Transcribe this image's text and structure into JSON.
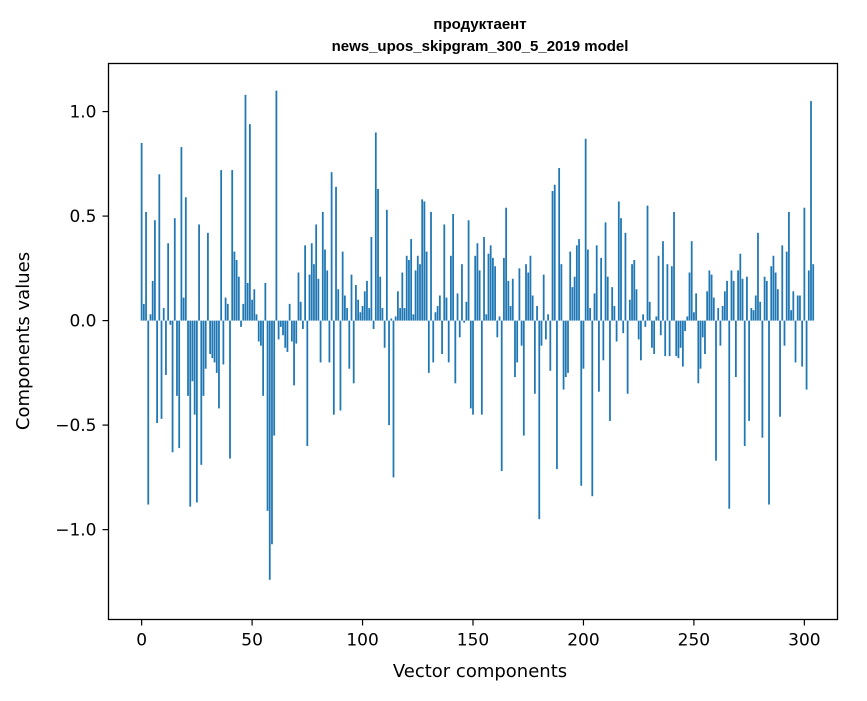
{
  "chart_data": {
    "type": "bar",
    "title": "продуктаент",
    "subtitle": "news_upos_skipgram_300_5_2019 model",
    "xlabel": "Vector components",
    "ylabel": "Components values",
    "xlim": [
      -15,
      315
    ],
    "ylim": [
      -1.43,
      1.23
    ],
    "xticks": [
      0,
      50,
      100,
      150,
      200,
      250,
      300
    ],
    "xtick_labels": [
      "0",
      "50",
      "100",
      "150",
      "200",
      "250",
      "300"
    ],
    "yticks": [
      -1.0,
      -0.5,
      0.0,
      0.5,
      1.0
    ],
    "ytick_labels": [
      "−1.0",
      "−0.5",
      "0.0",
      "0.5",
      "1.0"
    ],
    "grid": false,
    "bar_color": "#1f77b4",
    "x_start": 0,
    "values": [
      0.85,
      0.08,
      0.52,
      -0.88,
      0.03,
      0.19,
      0.48,
      -0.49,
      0.7,
      -0.47,
      0.06,
      -0.26,
      0.37,
      -0.02,
      -0.63,
      0.49,
      -0.36,
      -0.61,
      0.83,
      0.11,
      0.59,
      -0.36,
      -0.89,
      -0.29,
      -0.45,
      -0.87,
      0.46,
      -0.69,
      -0.36,
      -0.23,
      0.42,
      -0.16,
      -0.18,
      -0.2,
      -0.25,
      -0.42,
      0.72,
      -0.21,
      0.11,
      0.08,
      -0.66,
      0.72,
      0.33,
      0.29,
      0.21,
      -0.03,
      0.08,
      1.08,
      0.18,
      0.94,
      0.1,
      0.15,
      0.03,
      -0.1,
      -0.12,
      -0.36,
      0.18,
      -0.91,
      -1.24,
      -1.07,
      -0.55,
      1.1,
      -0.09,
      -0.03,
      -0.07,
      -0.13,
      -0.15,
      0.08,
      -0.1,
      -0.31,
      -0.11,
      0.23,
      0.09,
      -0.04,
      0.36,
      -0.6,
      0.22,
      0.37,
      0.27,
      0.46,
      0.2,
      -0.2,
      0.52,
      0.34,
      0.24,
      -0.2,
      0.71,
      -0.45,
      0.64,
      0.15,
      -0.43,
      0.33,
      0.12,
      0.06,
      -0.23,
      0.22,
      -0.3,
      0.17,
      0.1,
      0.04,
      0.07,
      0.14,
      0.19,
      0.06,
      0.4,
      -0.04,
      0.9,
      0.63,
      0.21,
      0.06,
      -0.13,
      0.53,
      -0.5,
      0.01,
      -0.75,
      0.02,
      0.14,
      0.06,
      0.23,
      0.06,
      0.31,
      0.29,
      0.39,
      0.03,
      0.24,
      0.31,
      0.27,
      0.58,
      0.57,
      0.33,
      -0.25,
      0.52,
      -0.2,
      0.04,
      0.07,
      0.12,
      -0.16,
      0.46,
      0.11,
      -0.2,
      0.31,
      0.51,
      -0.3,
      0.13,
      -0.08,
      0.27,
      -0.01,
      0.09,
      0.48,
      -0.42,
      -0.45,
      0.31,
      0.37,
      0.24,
      -0.45,
      0.4,
      0.03,
      0.32,
      0.36,
      0.3,
      0.26,
      -0.08,
      0.02,
      -0.72,
      0.3,
      0.54,
      0.19,
      0.07,
      0.2,
      -0.27,
      -0.2,
      0.25,
      -0.12,
      -0.55,
      0.27,
      0.23,
      0.31,
      0.12,
      -0.35,
      0.07,
      -0.95,
      -0.12,
      0.22,
      -0.09,
      0.03,
      -0.24,
      0.62,
      0.65,
      -0.71,
      0.73,
      0.27,
      -0.33,
      -0.27,
      -0.25,
      0.33,
      0.16,
      0.21,
      0.36,
      0.39,
      -0.79,
      -0.23,
      0.87,
      0.34,
      0.06,
      -0.84,
      0.13,
      0.36,
      -0.34,
      0.3,
      -0.19,
      0.47,
      0.21,
      -0.48,
      0.16,
      0.07,
      -0.1,
      0.57,
      0.49,
      -0.06,
      0.42,
      -0.35,
      0.1,
      0.27,
      0.29,
      0.15,
      -0.09,
      -0.19,
      0.03,
      -0.03,
      0.55,
      0.09,
      -0.13,
      -0.16,
      0.02,
      0.31,
      -0.07,
      0.38,
      -0.17,
      0.27,
      -0.17,
      0.26,
      0.52,
      -0.17,
      -0.18,
      -0.13,
      -0.22,
      -0.05,
      0.02,
      0.23,
      0.38,
      0.04,
      0.13,
      -0.3,
      -0.23,
      -0.08,
      -0.16,
      0.14,
      0.24,
      0.22,
      0.11,
      -0.67,
      0.06,
      -0.12,
      0.07,
      0.14,
      0.19,
      -0.9,
      0.24,
      0.19,
      -0.27,
      0.24,
      0.32,
      0.2,
      -0.6,
      0.21,
      -0.48,
      0.06,
      0.05,
      0.12,
      0.42,
      0.09,
      -0.56,
      0.21,
      0.19,
      -0.88,
      0.26,
      0.31,
      0.23,
      0.15,
      -0.46,
      0.36,
      -0.12,
      0.33,
      0.52,
      0.05,
      0.14,
      -0.2,
      0.12,
      0.12,
      -0.22,
      0.54,
      -0.33,
      0.24,
      1.05,
      0.27
    ]
  }
}
